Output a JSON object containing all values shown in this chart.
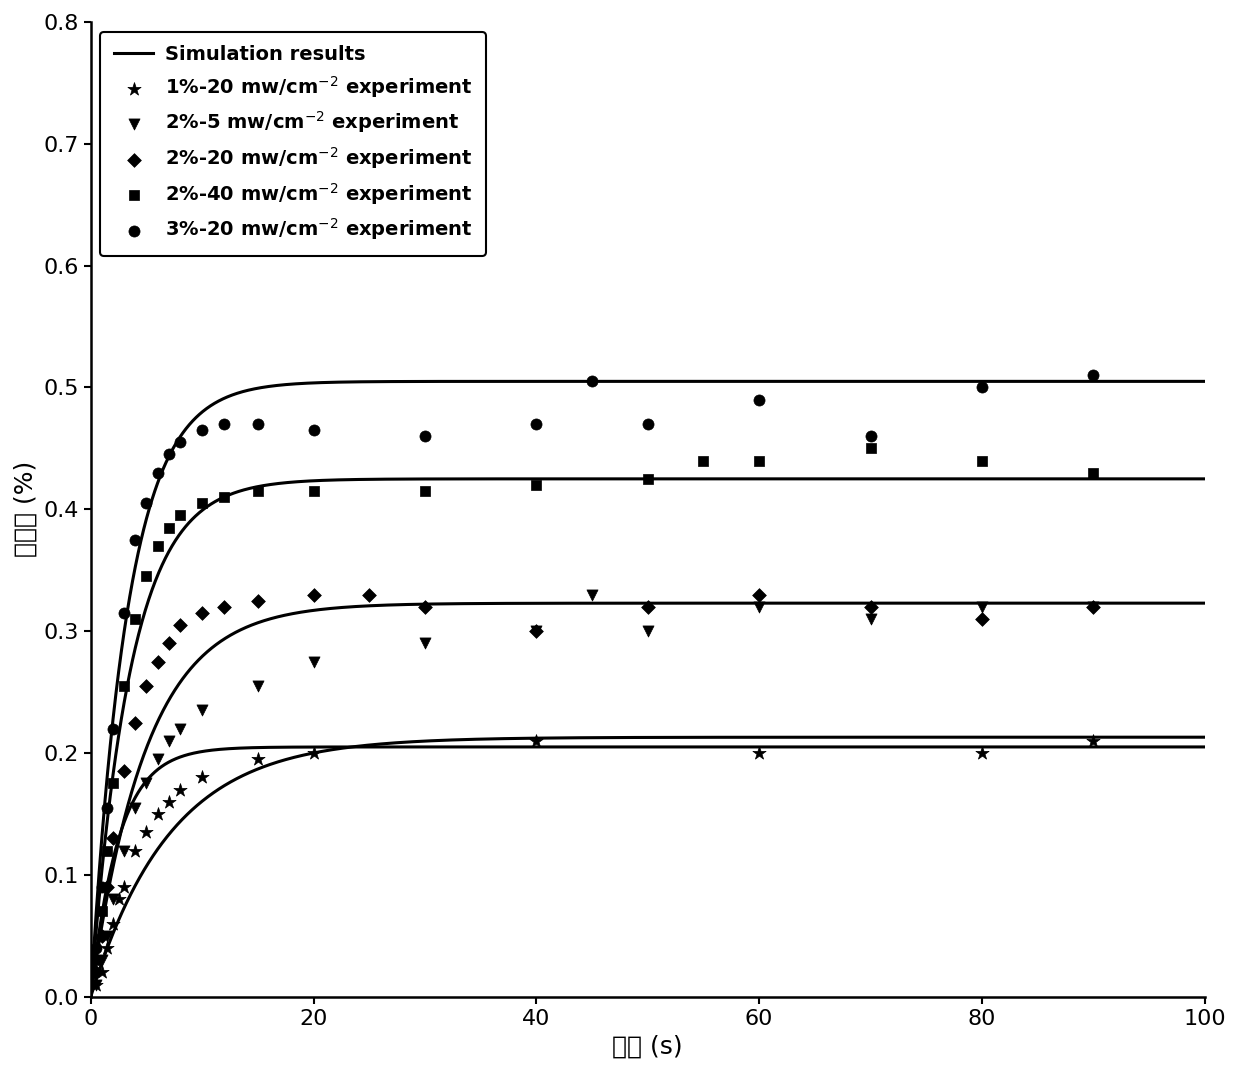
{
  "xlabel": "时间 (s)",
  "ylabel": "转化率 (%)",
  "xlim": [
    0,
    100
  ],
  "ylim": [
    0,
    0.8
  ],
  "xticks": [
    0,
    20,
    40,
    60,
    80,
    100
  ],
  "yticks": [
    0,
    0.1,
    0.2,
    0.3,
    0.4,
    0.5,
    0.6,
    0.7,
    0.8
  ],
  "curve_params": [
    {
      "A": 0.505,
      "k": 0.3
    },
    {
      "A": 0.425,
      "k": 0.28
    },
    {
      "A": 0.323,
      "k": 0.2
    },
    {
      "A": 0.213,
      "k": 0.14
    },
    {
      "A": 0.205,
      "k": 0.4
    }
  ],
  "scatter_data": {
    "1pct_20mw": {
      "label": "1%-20 mw/cm$^{-2}$ experiment",
      "marker": "*",
      "x": [
        0.5,
        1,
        1.5,
        2,
        2.5,
        3,
        4,
        5,
        6,
        7,
        8,
        10,
        15,
        20,
        40,
        60,
        80,
        90
      ],
      "y": [
        0.01,
        0.02,
        0.04,
        0.06,
        0.08,
        0.09,
        0.12,
        0.135,
        0.15,
        0.16,
        0.17,
        0.18,
        0.195,
        0.2,
        0.21,
        0.2,
        0.2,
        0.21
      ]
    },
    "2pct_5mw": {
      "label": "2%-5 mw/cm$^{-2}$ experiment",
      "marker": "v",
      "x": [
        0.5,
        1,
        1.5,
        2,
        3,
        4,
        5,
        6,
        7,
        8,
        10,
        15,
        20,
        30,
        40,
        45,
        50,
        60,
        70,
        80,
        90
      ],
      "y": [
        0.01,
        0.03,
        0.05,
        0.08,
        0.12,
        0.155,
        0.175,
        0.195,
        0.21,
        0.22,
        0.235,
        0.255,
        0.275,
        0.29,
        0.3,
        0.33,
        0.3,
        0.32,
        0.31,
        0.32,
        0.32
      ]
    },
    "2pct_20mw": {
      "label": "2%-20 mw/cm$^{-2}$ experiment",
      "marker": "D",
      "x": [
        0.5,
        1,
        1.5,
        2,
        3,
        4,
        5,
        6,
        7,
        8,
        10,
        12,
        15,
        20,
        25,
        30,
        40,
        50,
        60,
        70,
        80,
        90
      ],
      "y": [
        0.02,
        0.05,
        0.09,
        0.13,
        0.185,
        0.225,
        0.255,
        0.275,
        0.29,
        0.305,
        0.315,
        0.32,
        0.325,
        0.33,
        0.33,
        0.32,
        0.3,
        0.32,
        0.33,
        0.32,
        0.31,
        0.32
      ]
    },
    "2pct_40mw": {
      "label": "2%-40 mw/cm$^{-2}$ experiment",
      "marker": "s",
      "x": [
        0.5,
        1,
        1.5,
        2,
        3,
        4,
        5,
        6,
        7,
        8,
        10,
        12,
        15,
        20,
        30,
        40,
        50,
        55,
        60,
        70,
        80,
        90
      ],
      "y": [
        0.03,
        0.07,
        0.12,
        0.175,
        0.255,
        0.31,
        0.345,
        0.37,
        0.385,
        0.395,
        0.405,
        0.41,
        0.415,
        0.415,
        0.415,
        0.42,
        0.425,
        0.44,
        0.44,
        0.45,
        0.44,
        0.43
      ]
    },
    "3pct_20mw": {
      "label": "3%-20 mw/cm$^{-2}$ experiment",
      "marker": "o",
      "x": [
        0.5,
        1,
        1.5,
        2,
        3,
        4,
        5,
        6,
        7,
        8,
        10,
        12,
        15,
        20,
        30,
        40,
        45,
        50,
        60,
        70,
        80,
        90
      ],
      "y": [
        0.04,
        0.09,
        0.155,
        0.22,
        0.315,
        0.375,
        0.405,
        0.43,
        0.445,
        0.455,
        0.465,
        0.47,
        0.47,
        0.465,
        0.46,
        0.47,
        0.505,
        0.47,
        0.49,
        0.46,
        0.5,
        0.51
      ]
    }
  },
  "line_color": "#000000",
  "line_width": 2.2,
  "marker_color": "#000000",
  "marker_size": 7,
  "legend_fontsize": 14,
  "axis_fontsize": 18,
  "tick_fontsize": 16,
  "background_color": "white"
}
